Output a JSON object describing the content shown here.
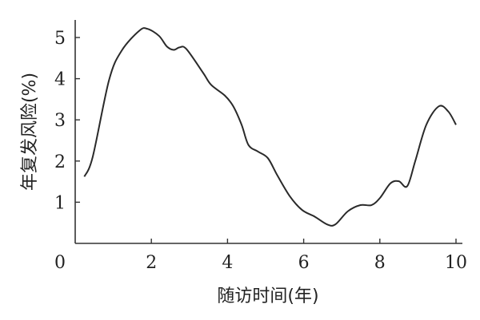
{
  "chart_data": {
    "type": "line",
    "title": "",
    "xlabel": "随访时间(年)",
    "ylabel": "年复发风险(%)",
    "xlim": [
      0,
      10
    ],
    "ylim": [
      0,
      5.3
    ],
    "origin_label": "0",
    "xticks": [
      2,
      4,
      6,
      8,
      10
    ],
    "yticks": [
      1,
      2,
      3,
      4,
      5
    ],
    "grid": false,
    "line_color": "#2a2a2a",
    "series": [
      {
        "x": [
          0.24,
          0.46,
          0.89,
          1.22,
          1.69,
          1.9,
          2.2,
          2.41,
          2.59,
          2.74,
          2.92,
          3.36,
          3.57,
          3.93,
          4.15,
          4.37,
          4.55,
          4.8,
          5.06,
          5.31,
          5.64,
          5.96,
          6.29,
          6.62,
          6.83,
          7.16,
          7.49,
          7.78,
          8.0,
          8.28,
          8.5,
          8.72,
          8.93,
          9.22,
          9.55,
          9.8,
          10.0
        ],
        "y": [
          1.62,
          2.1,
          3.97,
          4.68,
          5.17,
          5.21,
          5.04,
          4.78,
          4.7,
          4.76,
          4.72,
          4.14,
          3.85,
          3.59,
          3.33,
          2.88,
          2.39,
          2.23,
          2.07,
          1.65,
          1.14,
          0.81,
          0.65,
          0.46,
          0.46,
          0.78,
          0.93,
          0.93,
          1.1,
          1.46,
          1.51,
          1.39,
          2.0,
          2.88,
          3.33,
          3.2,
          2.88
        ]
      }
    ]
  }
}
